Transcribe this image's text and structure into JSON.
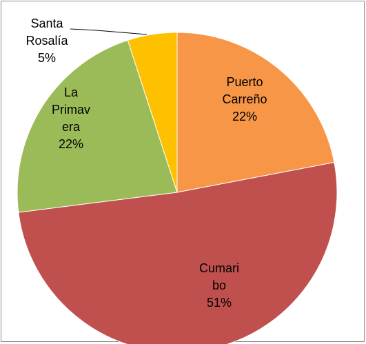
{
  "chart_data": {
    "type": "pie",
    "categories": [
      "Puerto Carreño",
      "Cumaribo",
      "La Primavera",
      "Santa Rosalía"
    ],
    "values": [
      22,
      51,
      22,
      5
    ],
    "value_labels": [
      "22%",
      "51%",
      "22%",
      "5%"
    ],
    "colors": [
      "#F79646",
      "#C0504D",
      "#9BBB59",
      "#FFC000"
    ]
  }
}
